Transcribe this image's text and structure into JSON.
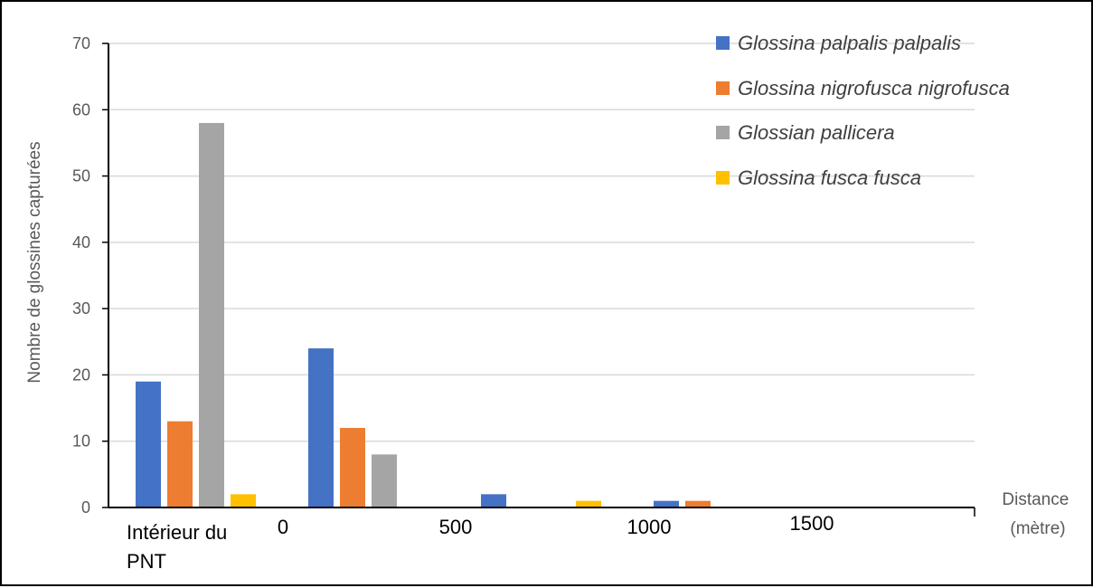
{
  "chart_data": {
    "type": "bar",
    "ylabel": "Nombre de glossines capturées",
    "xlabel_lines": [
      "Distance",
      "(mètre)"
    ],
    "ylim": [
      0,
      70
    ],
    "yticks": [
      0,
      10,
      20,
      30,
      40,
      50,
      60,
      70
    ],
    "grid": true,
    "legend_position": "top-right",
    "x_tick_labels": [
      {
        "text_lines": [
          "Intérieur du",
          "PNT"
        ]
      },
      {
        "text_lines": [
          "0"
        ]
      },
      {
        "text_lines": [
          "500"
        ]
      },
      {
        "text_lines": [
          "1000"
        ]
      },
      {
        "text_lines": [
          "1500"
        ]
      }
    ],
    "groups": [
      {
        "name": "Intérieur du PNT",
        "values": [
          19,
          13,
          58,
          2
        ]
      },
      {
        "name": "0 – 500",
        "values": [
          24,
          12,
          8,
          0
        ]
      },
      {
        "name": "500 – 1000",
        "values": [
          2,
          0,
          0,
          1
        ]
      },
      {
        "name": "1000 – 1500",
        "values": [
          1,
          1,
          0,
          0
        ]
      },
      {
        "name": "1500 +",
        "values": [
          0,
          0,
          0,
          0
        ]
      }
    ],
    "series": [
      {
        "name": "Glossina palpalis palpalis",
        "color": "#4472C4"
      },
      {
        "name": "Glossina nigrofusca nigrofusca",
        "color": "#ED7D31"
      },
      {
        "name": "Glossian pallicera",
        "color": "#A5A5A5"
      },
      {
        "name": "Glossina fusca fusca",
        "color": "#FFC000"
      }
    ]
  }
}
